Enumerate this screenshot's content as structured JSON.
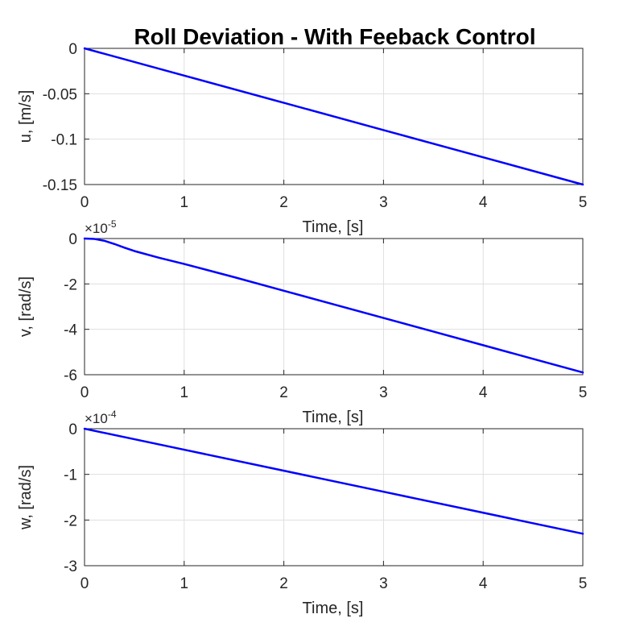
{
  "figure": {
    "title": "Roll Deviation - With Feeback Control"
  },
  "colors": {
    "series": "#0000ff",
    "axis": "#262626",
    "grid": "#dfdfdf"
  },
  "chart_data": [
    {
      "type": "line",
      "title": "Roll Deviation - With Feeback Control",
      "xlabel": "Time, [s]",
      "ylabel": "u, [m/s]",
      "xlim": [
        0,
        5
      ],
      "ylim": [
        -0.15,
        0
      ],
      "x_ticks": [
        0,
        1,
        2,
        3,
        4,
        5
      ],
      "x_tick_labels": [
        "0",
        "1",
        "2",
        "3",
        "4",
        "5"
      ],
      "y_ticks": [
        0,
        -0.05,
        -0.1,
        -0.15
      ],
      "y_tick_labels": [
        "0",
        "-0.05",
        "-0.1",
        "-0.15"
      ],
      "exponent": null,
      "grid": true,
      "series": [
        {
          "name": "u",
          "x": [
            0,
            1,
            2,
            3,
            4,
            5
          ],
          "values": [
            0,
            -0.03,
            -0.06,
            -0.09,
            -0.12,
            -0.15
          ]
        }
      ]
    },
    {
      "type": "line",
      "title": "",
      "xlabel": "Time, [s]",
      "ylabel": "v, [rad/s]",
      "xlim": [
        0,
        5
      ],
      "ylim": [
        -6,
        0
      ],
      "x_ticks": [
        0,
        1,
        2,
        3,
        4,
        5
      ],
      "x_tick_labels": [
        "0",
        "1",
        "2",
        "3",
        "4",
        "5"
      ],
      "y_ticks": [
        0,
        -2,
        -4,
        -6
      ],
      "y_tick_labels": [
        "0",
        "-2",
        "-4",
        "-6"
      ],
      "exponent": {
        "base": "×10",
        "power": "-5"
      },
      "grid": true,
      "series": [
        {
          "name": "v",
          "x": [
            0,
            0.1,
            0.2,
            0.3,
            0.4,
            0.5,
            0.75,
            1,
            1.5,
            2,
            2.5,
            3,
            3.5,
            4,
            4.5,
            5
          ],
          "values": [
            0,
            -0.02,
            -0.1,
            -0.24,
            -0.4,
            -0.55,
            -0.85,
            -1.12,
            -1.7,
            -2.3,
            -2.9,
            -3.5,
            -4.1,
            -4.7,
            -5.3,
            -5.9
          ]
        }
      ]
    },
    {
      "type": "line",
      "title": "",
      "xlabel": "Time, [s]",
      "ylabel": "w, [rad/s]",
      "xlim": [
        0,
        5
      ],
      "ylim": [
        -3,
        0
      ],
      "x_ticks": [
        0,
        1,
        2,
        3,
        4,
        5
      ],
      "x_tick_labels": [
        "0",
        "1",
        "2",
        "3",
        "4",
        "5"
      ],
      "y_ticks": [
        0,
        -1,
        -2,
        -3
      ],
      "y_tick_labels": [
        "0",
        "-1",
        "-2",
        "-3"
      ],
      "exponent": {
        "base": "×10",
        "power": "-4"
      },
      "grid": true,
      "series": [
        {
          "name": "w",
          "x": [
            0,
            1,
            2,
            3,
            4,
            5
          ],
          "values": [
            0,
            -0.46,
            -0.92,
            -1.38,
            -1.84,
            -2.3
          ]
        }
      ]
    }
  ]
}
